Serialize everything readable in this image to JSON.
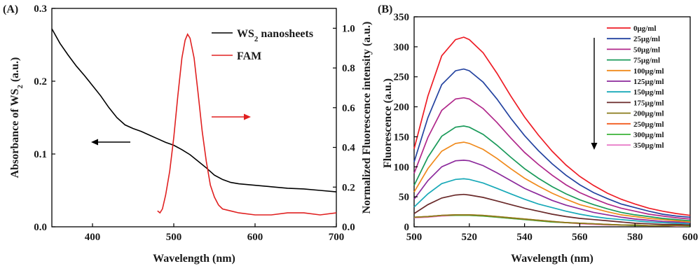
{
  "chart_data": [
    {
      "panel": "(A)",
      "type": "line",
      "xlabel": "Wavelength (nm)",
      "ylabel_left": "Absorbance of WS2 (a.u.)",
      "ylabel_right": "Normalized Fluorescence intensity (a.u.)",
      "xlim": [
        350,
        700
      ],
      "ylim_left": [
        0,
        0.3
      ],
      "ylim_right": [
        0,
        1.1
      ],
      "x_ticks": [
        400,
        500,
        600,
        700
      ],
      "y_ticks_left": [
        "0.0",
        "0.1",
        "0.2",
        "0.3"
      ],
      "y_ticks_right": [
        "0.0",
        "0.2",
        "0.4",
        "0.6",
        "0.8",
        "1.0"
      ],
      "legend": [
        {
          "name": "WS2 nanosheets",
          "color": "#000000"
        },
        {
          "name": "FAM",
          "color": "#e02020"
        }
      ],
      "series": [
        {
          "name": "WS2 nanosheets",
          "axis": "left",
          "color": "#000000",
          "x": [
            350,
            360,
            370,
            380,
            390,
            400,
            410,
            420,
            430,
            440,
            450,
            460,
            470,
            480,
            490,
            500,
            510,
            520,
            530,
            540,
            550,
            560,
            570,
            580,
            600,
            620,
            640,
            660,
            680,
            700
          ],
          "y": [
            0.272,
            0.252,
            0.236,
            0.221,
            0.208,
            0.194,
            0.18,
            0.164,
            0.15,
            0.14,
            0.135,
            0.131,
            0.126,
            0.121,
            0.116,
            0.112,
            0.106,
            0.099,
            0.09,
            0.081,
            0.071,
            0.065,
            0.061,
            0.059,
            0.057,
            0.055,
            0.053,
            0.052,
            0.05,
            0.048
          ]
        },
        {
          "name": "FAM",
          "axis": "right",
          "color": "#e02020",
          "x": [
            480,
            483,
            486,
            490,
            495,
            500,
            505,
            510,
            514,
            517,
            520,
            525,
            530,
            535,
            540,
            545,
            550,
            555,
            560,
            570,
            580,
            600,
            620,
            640,
            660,
            680,
            700
          ],
          "y": [
            0.08,
            0.07,
            0.09,
            0.16,
            0.28,
            0.45,
            0.66,
            0.85,
            0.94,
            0.97,
            0.95,
            0.85,
            0.67,
            0.48,
            0.33,
            0.21,
            0.15,
            0.11,
            0.09,
            0.08,
            0.07,
            0.06,
            0.06,
            0.07,
            0.07,
            0.06,
            0.07
          ]
        }
      ],
      "annotations": [
        {
          "kind": "arrow",
          "direction": "left",
          "color": "#000000",
          "points_to": "left axis"
        },
        {
          "kind": "arrow",
          "direction": "right",
          "color": "#e02020",
          "points_to": "right axis"
        }
      ]
    },
    {
      "panel": "(B)",
      "type": "line",
      "xlabel": "Wavelength (nm)",
      "ylabel": "Fluorescence (a.u.)",
      "xlim": [
        500,
        600
      ],
      "ylim": [
        0,
        350
      ],
      "x_ticks": [
        500,
        520,
        540,
        560,
        580,
        600
      ],
      "y_ticks": [
        0,
        50,
        100,
        150,
        200,
        250,
        300,
        350
      ],
      "peak_wavelength": 518,
      "x": [
        500,
        505,
        510,
        515,
        518,
        520,
        525,
        530,
        535,
        540,
        545,
        550,
        555,
        560,
        565,
        570,
        575,
        580,
        585,
        590,
        595,
        600
      ],
      "series": [
        {
          "name": "0μg/ml",
          "color": "#ee1c25",
          "y": [
            130,
            218,
            285,
            312,
            316,
            312,
            290,
            256,
            218,
            183,
            153,
            126,
            103,
            84,
            69,
            56,
            46,
            38,
            31,
            26,
            22,
            19
          ]
        },
        {
          "name": "25μg/ml",
          "color": "#2443a0",
          "y": [
            108,
            182,
            237,
            260,
            263,
            260,
            241,
            213,
            181,
            152,
            127,
            105,
            86,
            70,
            57,
            47,
            38,
            32,
            26,
            21,
            18,
            16
          ]
        },
        {
          "name": "50μg/ml",
          "color": "#b0278a",
          "y": [
            89,
            149,
            194,
            213,
            215,
            213,
            197,
            174,
            148,
            124,
            104,
            86,
            70,
            57,
            47,
            38,
            31,
            26,
            21,
            18,
            15,
            13
          ]
        },
        {
          "name": "75μg/ml",
          "color": "#1a9a5a",
          "y": [
            69,
            116,
            151,
            166,
            168,
            166,
            154,
            136,
            116,
            97,
            81,
            67,
            55,
            45,
            37,
            30,
            24,
            20,
            17,
            14,
            12,
            10
          ]
        },
        {
          "name": "100μg/ml",
          "color": "#f08a1c",
          "y": [
            58,
            97,
            126,
            139,
            141,
            139,
            129,
            114,
            97,
            81,
            68,
            56,
            46,
            37,
            31,
            25,
            20,
            17,
            14,
            12,
            10,
            8
          ]
        },
        {
          "name": "125μg/ml",
          "color": "#8c2a9c",
          "y": [
            46,
            77,
            100,
            110,
            111,
            110,
            102,
            90,
            77,
            64,
            54,
            44,
            36,
            30,
            24,
            20,
            16,
            13,
            11,
            9,
            8,
            7
          ]
        },
        {
          "name": "150μg/ml",
          "color": "#18a9b8",
          "y": [
            33,
            55,
            72,
            79,
            80,
            79,
            73,
            64,
            55,
            46,
            38,
            32,
            26,
            21,
            17,
            14,
            12,
            10,
            8,
            7,
            6,
            5
          ]
        },
        {
          "name": "175μg/ml",
          "color": "#6a2a2a",
          "y": [
            22,
            37,
            48,
            53,
            54,
            53,
            49,
            43,
            37,
            31,
            26,
            21,
            17,
            14,
            12,
            10,
            8,
            6,
            5,
            4,
            4,
            3
          ]
        },
        {
          "name": "200μg/ml",
          "color": "#8a7a1a",
          "y": [
            16,
            17,
            19,
            20,
            20,
            20,
            19,
            17,
            15,
            13,
            11,
            9,
            7,
            6,
            5,
            4,
            3,
            3,
            2,
            2,
            2,
            2
          ]
        },
        {
          "name": "250μg/ml",
          "color": "#f25c1e",
          "y": [
            16,
            17,
            19,
            20,
            20,
            20,
            19,
            17,
            15,
            13,
            11,
            9,
            7,
            6,
            5,
            4,
            3,
            3,
            2,
            2,
            2,
            2
          ]
        },
        {
          "name": "300μg/ml",
          "color": "#3cb338",
          "y": [
            16,
            17,
            19,
            19,
            19,
            19,
            18,
            16,
            14,
            12,
            10,
            8,
            7,
            6,
            5,
            4,
            3,
            2,
            2,
            2,
            2,
            1
          ]
        },
        {
          "name": "350μg/ml",
          "color": "#e87cc8",
          "y": [
            15,
            16,
            18,
            19,
            19,
            19,
            18,
            16,
            14,
            12,
            10,
            8,
            7,
            5,
            4,
            3,
            3,
            2,
            2,
            2,
            1,
            1
          ]
        }
      ],
      "annotations": [
        {
          "kind": "arrow",
          "direction": "down",
          "color": "#000000",
          "meaning": "increasing concentration"
        }
      ]
    }
  ]
}
